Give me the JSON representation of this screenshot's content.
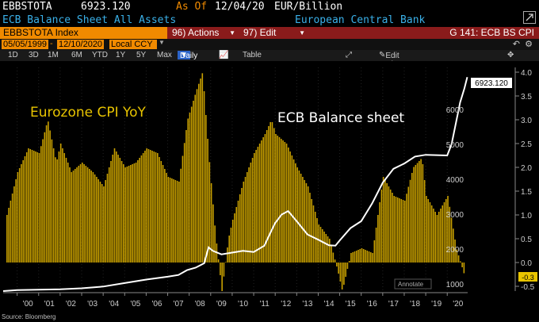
{
  "header": {
    "ticker": "EBBSTOTA",
    "value": "6923.120",
    "as_of_label": "As Of",
    "as_of_date": "12/04/20",
    "units": "EUR/Billion"
  },
  "subheader": {
    "title": "ECB Balance Sheet All Assets",
    "source": "European Central Bank"
  },
  "toolbar": {
    "security": "EBBSTOTA Index",
    "actions_label": "96) Actions",
    "edit_label": "97) Edit",
    "page_label": "G 141: ECB BS CPI"
  },
  "range": {
    "start": "05/05/1999",
    "end": "12/10/2020",
    "currency": "Local CCY"
  },
  "periods": [
    "1D",
    "3D",
    "1M",
    "6M",
    "YTD",
    "1Y",
    "5Y",
    "Max"
  ],
  "frequency": "Daily",
  "table_label": "Table",
  "edit_chart_label": "Edit Chart",
  "annotate_label": "Annotate",
  "footer": "Source: Bloomberg",
  "colors": {
    "orange": "#f08a00",
    "bar": "#c8a000",
    "line": "#ffffff",
    "blue_text": "#3ab0e8",
    "button_red": "#8a1b1b"
  },
  "chart_data": {
    "type": "bar",
    "annotations": [
      "Eurozone CPI YoY",
      "ECB Balance sheet"
    ],
    "last_value_label": "6923.120",
    "x_ticks": [
      "'00",
      "'01",
      "'02",
      "'03",
      "'04",
      "'05",
      "'06",
      "'07",
      "'08",
      "'09",
      "'10",
      "'11",
      "'12",
      "'13",
      "'14",
      "'15",
      "'16",
      "'17",
      "'18",
      "'19",
      "'20"
    ],
    "left_axis_ticks": [
      1000,
      2000,
      3000,
      4000,
      5000,
      6000
    ],
    "right_axis_ticks": [
      "4.0",
      "3.5",
      "3.0",
      "2.5",
      "2.0",
      "1.5",
      "1.0",
      "0.5",
      "0.0",
      "-0.5"
    ],
    "left_ylim": [
      800,
      7200
    ],
    "right_ylim": [
      -0.6,
      4.1
    ],
    "xlim": [
      1999.35,
      2020.95
    ],
    "series": [
      {
        "name": "Eurozone CPI YoY",
        "style": "bars",
        "axis": "right",
        "x": [
          1999.5,
          2000.0,
          2000.5,
          2001.0,
          2001.4,
          2001.8,
          2002.0,
          2002.5,
          2003.0,
          2003.5,
          2004.0,
          2004.5,
          2005.0,
          2005.5,
          2006.0,
          2006.5,
          2007.0,
          2007.5,
          2007.9,
          2008.3,
          2008.6,
          2008.9,
          2009.2,
          2009.5,
          2009.8,
          2010.0,
          2010.5,
          2011.0,
          2011.5,
          2011.8,
          2012.0,
          2012.5,
          2013.0,
          2013.5,
          2014.0,
          2014.5,
          2014.9,
          2015.1,
          2015.5,
          2016.0,
          2016.5,
          2017.0,
          2017.5,
          2018.0,
          2018.4,
          2018.8,
          2019.0,
          2019.5,
          2020.0,
          2020.4,
          2020.8
        ],
        "y": [
          1.0,
          1.9,
          2.4,
          2.3,
          3.0,
          2.1,
          2.5,
          1.9,
          2.1,
          1.9,
          1.6,
          2.4,
          2.0,
          2.1,
          2.4,
          2.3,
          1.8,
          1.7,
          3.0,
          3.6,
          4.0,
          2.2,
          0.6,
          -0.6,
          0.5,
          0.9,
          1.7,
          2.3,
          2.7,
          3.0,
          2.7,
          2.5,
          2.0,
          1.6,
          0.8,
          0.5,
          -0.2,
          -0.6,
          0.2,
          0.3,
          0.2,
          1.8,
          1.4,
          1.3,
          2.0,
          2.2,
          1.4,
          1.0,
          1.4,
          0.3,
          -0.3
        ]
      },
      {
        "name": "ECB Balance sheet",
        "style": "line",
        "axis": "left",
        "x": [
          1999.35,
          2000.0,
          2001.0,
          2002.0,
          2003.0,
          2004.0,
          2005.0,
          2006.0,
          2007.0,
          2007.5,
          2007.9,
          2008.3,
          2008.7,
          2008.9,
          2009.1,
          2009.5,
          2010.0,
          2010.5,
          2011.0,
          2011.5,
          2011.8,
          2012.0,
          2012.3,
          2012.6,
          2013.0,
          2013.5,
          2014.0,
          2014.5,
          2014.8,
          2015.0,
          2015.5,
          2016.0,
          2016.5,
          2017.0,
          2017.5,
          2018.0,
          2018.5,
          2019.0,
          2019.5,
          2020.0,
          2020.2,
          2020.4,
          2020.6,
          2020.8,
          2020.93
        ],
        "y": [
          800,
          830,
          840,
          850,
          880,
          930,
          1030,
          1130,
          1210,
          1260,
          1400,
          1470,
          1600,
          2050,
          1950,
          1850,
          1900,
          1950,
          1920,
          2100,
          2500,
          2750,
          2990,
          3090,
          2800,
          2420,
          2270,
          2110,
          2100,
          2250,
          2600,
          2800,
          3300,
          3900,
          4300,
          4450,
          4650,
          4700,
          4690,
          4680,
          5000,
          5600,
          6200,
          6600,
          6923.12
        ]
      }
    ]
  }
}
